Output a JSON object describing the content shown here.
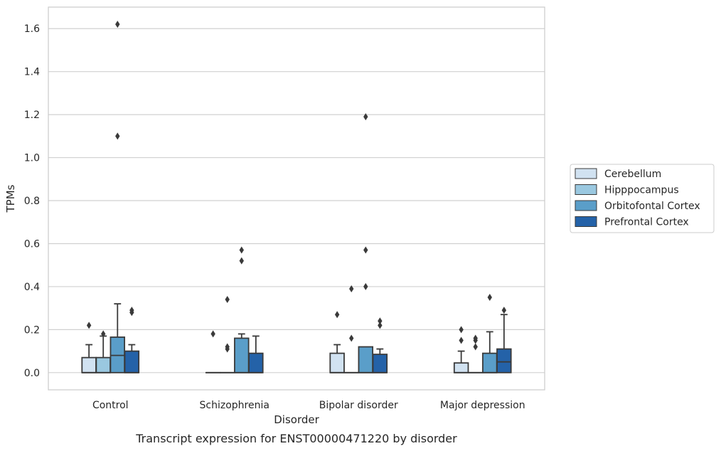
{
  "chart_data": {
    "type": "boxplot",
    "title": "Transcript expression for ENST00000471220 by disorder",
    "xlabel": "Disorder",
    "ylabel": "TPMs",
    "ylim": [
      -0.08,
      1.7
    ],
    "yticks": [
      "0.0",
      "0.2",
      "0.4",
      "0.6",
      "0.8",
      "1.0",
      "1.2",
      "1.4",
      "1.6"
    ],
    "grid": true,
    "legend_position": "right",
    "categories": [
      "Control",
      "Schizophrenia",
      "Bipolar disorder",
      "Major depression"
    ],
    "series": [
      {
        "name": "Cerebellum",
        "color": "#d1e2f1",
        "boxes": [
          {
            "q1": 0.0,
            "median": 0.0,
            "q3": 0.07,
            "whisker_low": 0.0,
            "whisker_high": 0.13,
            "outliers": [
              0.22
            ]
          },
          {
            "q1": 0.0,
            "median": 0.0,
            "q3": 0.0,
            "whisker_low": 0.0,
            "whisker_high": 0.0,
            "outliers": [
              0.18
            ]
          },
          {
            "q1": 0.0,
            "median": 0.0,
            "q3": 0.09,
            "whisker_low": 0.0,
            "whisker_high": 0.13,
            "outliers": [
              0.27
            ]
          },
          {
            "q1": 0.0,
            "median": 0.0,
            "q3": 0.045,
            "whisker_low": 0.0,
            "whisker_high": 0.1,
            "outliers": [
              0.15,
              0.2
            ]
          }
        ]
      },
      {
        "name": "Hipppocampus",
        "color": "#9ac8e0",
        "boxes": [
          {
            "q1": 0.0,
            "median": 0.0,
            "q3": 0.07,
            "whisker_low": 0.0,
            "whisker_high": 0.17,
            "outliers": [
              0.18
            ]
          },
          {
            "q1": 0.0,
            "median": 0.0,
            "q3": 0.0,
            "whisker_low": 0.0,
            "whisker_high": 0.0,
            "outliers": [
              0.11,
              0.12,
              0.34
            ]
          },
          {
            "q1": 0.0,
            "median": 0.0,
            "q3": 0.0,
            "whisker_low": 0.0,
            "whisker_high": 0.0,
            "outliers": [
              0.16,
              0.39
            ]
          },
          {
            "q1": 0.0,
            "median": 0.0,
            "q3": 0.0,
            "whisker_low": 0.0,
            "whisker_high": 0.0,
            "outliers": [
              0.12,
              0.15,
              0.16
            ]
          }
        ]
      },
      {
        "name": "Orbitofontal Cortex",
        "color": "#5a9ec9",
        "boxes": [
          {
            "q1": 0.0,
            "median": 0.08,
            "q3": 0.165,
            "whisker_low": 0.0,
            "whisker_high": 0.32,
            "outliers": [
              1.1,
              1.62
            ]
          },
          {
            "q1": 0.0,
            "median": 0.0,
            "q3": 0.16,
            "whisker_low": 0.0,
            "whisker_high": 0.18,
            "outliers": [
              0.52,
              0.57
            ]
          },
          {
            "q1": 0.0,
            "median": 0.0,
            "q3": 0.12,
            "whisker_low": 0.0,
            "whisker_high": 0.12,
            "outliers": [
              0.4,
              0.57,
              1.19
            ]
          },
          {
            "q1": 0.0,
            "median": 0.0,
            "q3": 0.09,
            "whisker_low": 0.0,
            "whisker_high": 0.19,
            "outliers": [
              0.35
            ]
          }
        ]
      },
      {
        "name": "Prefrontal Cortex",
        "color": "#2462a8",
        "boxes": [
          {
            "q1": 0.0,
            "median": 0.0,
            "q3": 0.1,
            "whisker_low": 0.0,
            "whisker_high": 0.13,
            "outliers": [
              0.28,
              0.29
            ]
          },
          {
            "q1": 0.0,
            "median": 0.0,
            "q3": 0.09,
            "whisker_low": 0.0,
            "whisker_high": 0.17,
            "outliers": []
          },
          {
            "q1": 0.0,
            "median": 0.0,
            "q3": 0.085,
            "whisker_low": 0.0,
            "whisker_high": 0.11,
            "outliers": [
              0.22,
              0.24
            ]
          },
          {
            "q1": 0.0,
            "median": 0.05,
            "q3": 0.11,
            "whisker_low": 0.0,
            "whisker_high": 0.27,
            "outliers": [
              0.29
            ]
          }
        ]
      }
    ]
  }
}
